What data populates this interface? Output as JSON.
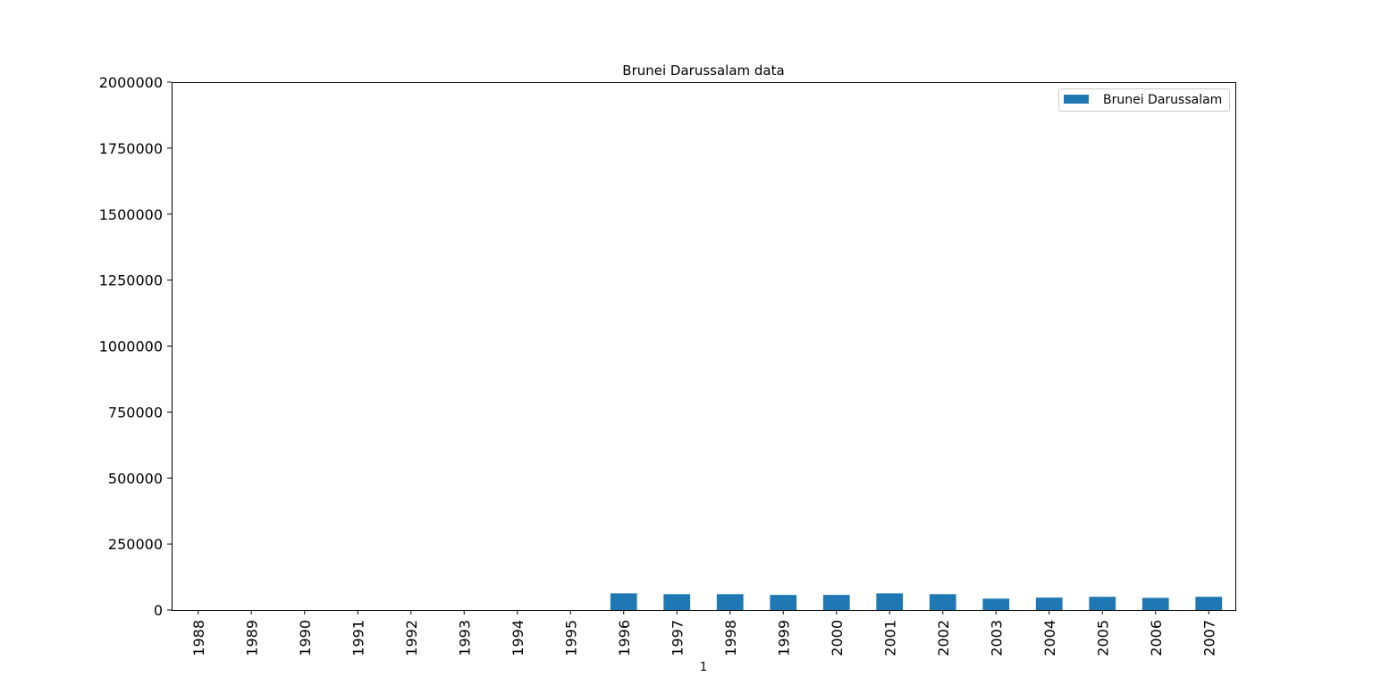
{
  "chart_data": {
    "type": "bar",
    "title": "Brunei Darussalam data",
    "xlabel": "1",
    "ylabel": "",
    "categories": [
      "1988",
      "1989",
      "1990",
      "1991",
      "1992",
      "1993",
      "1994",
      "1995",
      "1996",
      "1997",
      "1998",
      "1999",
      "2000",
      "2001",
      "2002",
      "2003",
      "2004",
      "2005",
      "2006",
      "2007"
    ],
    "series": [
      {
        "name": "Brunei Darussalam",
        "color": "#1f77b4",
        "values": [
          0,
          0,
          0,
          0,
          0,
          0,
          0,
          0,
          63000,
          60000,
          60000,
          57000,
          57000,
          63000,
          60000,
          43000,
          47000,
          50000,
          46000,
          50000
        ]
      }
    ],
    "ylim": [
      0,
      2000000
    ],
    "yticks": [
      0,
      250000,
      500000,
      750000,
      1000000,
      1250000,
      1500000,
      1750000,
      2000000
    ],
    "legend_position": "top-right",
    "grid": false
  }
}
